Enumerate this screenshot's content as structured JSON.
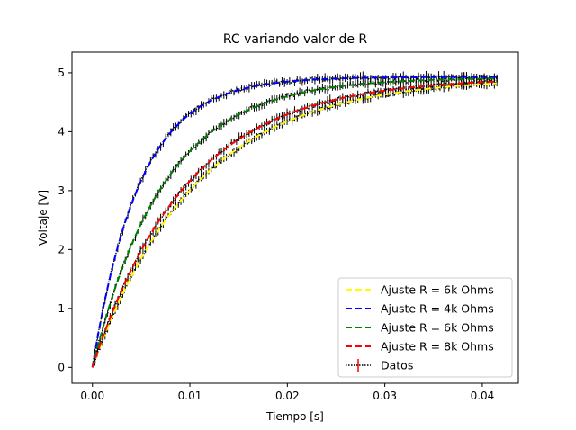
{
  "chart_data": {
    "type": "line",
    "title": "RC variando valor de R",
    "xlabel": "Tiempo [s]",
    "ylabel": "Voltaje [V]",
    "xlim": [
      -0.0021,
      0.0437
    ],
    "ylim": [
      -0.27,
      5.35
    ],
    "x_ticks": [
      0.0,
      0.01,
      0.02,
      0.03,
      0.04
    ],
    "x_tick_labels": [
      "0.00",
      "0.01",
      "0.02",
      "0.03",
      "0.04"
    ],
    "y_ticks": [
      0,
      1,
      2,
      3,
      4,
      5
    ],
    "y_tick_labels": [
      "0",
      "1",
      "2",
      "3",
      "4",
      "5"
    ],
    "grid": false,
    "legend_position": "lower-right",
    "x_end": 0.0415,
    "series": [
      {
        "name": "Ajuste R = 6k Ohms",
        "color": "#ffff00",
        "style": "dashed",
        "vmax": 4.92,
        "tau": 0.0106,
        "x_end": 0.0415
      },
      {
        "name": "Ajuste R = 4k Ohms",
        "color": "#0000ff",
        "style": "dashed",
        "vmax": 4.93,
        "tau": 0.00485,
        "x_end": 0.0415
      },
      {
        "name": "Ajuste R = 6k Ohms",
        "color": "#008000",
        "style": "dashed",
        "vmax": 4.92,
        "tau": 0.0073,
        "x_end": 0.0415
      },
      {
        "name": "Ajuste R = 8k Ohms",
        "color": "#ff0000",
        "style": "dashed",
        "vmax": 4.92,
        "tau": 0.0097,
        "x_end": 0.0415
      },
      {
        "name": "Datos",
        "color": "#000000",
        "style": "dotted-errorbar"
      }
    ],
    "legend_entries": [
      {
        "label": "Ajuste R = 6k Ohms",
        "color": "#ffff00",
        "marker": "dashed"
      },
      {
        "label": "Ajuste R = 4k Ohms",
        "color": "#0000ff",
        "marker": "dashed"
      },
      {
        "label": "Ajuste R = 6k Ohms",
        "color": "#008000",
        "marker": "dashed"
      },
      {
        "label": "Ajuste R = 8k Ohms",
        "color": "#ff0000",
        "marker": "dashed"
      },
      {
        "label": "Datos",
        "color": "#000000",
        "marker": "errorbar"
      }
    ]
  }
}
